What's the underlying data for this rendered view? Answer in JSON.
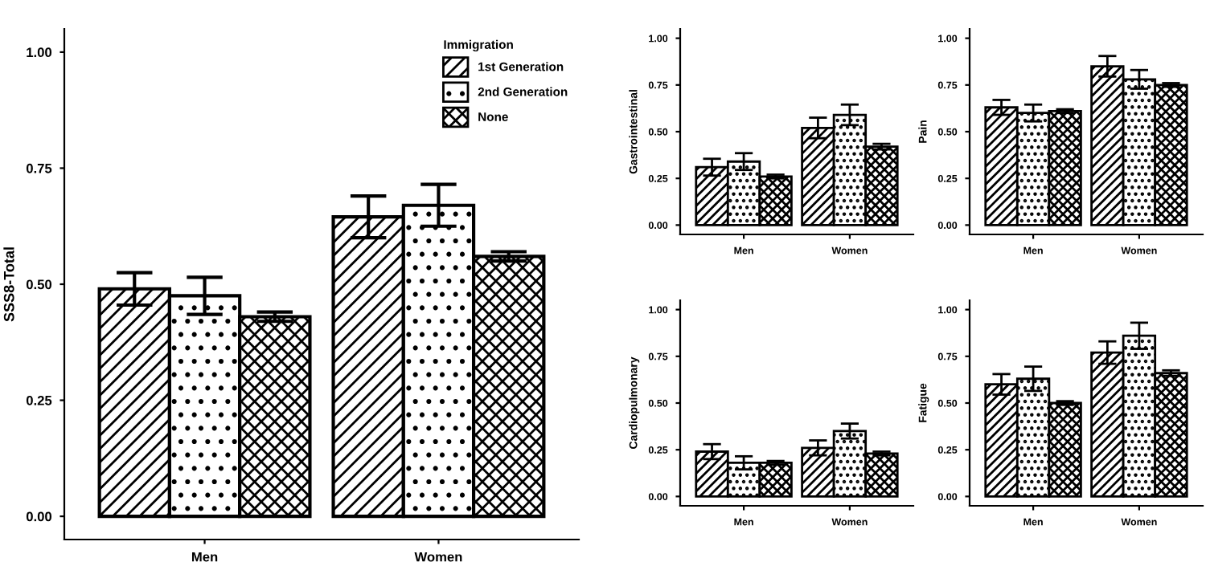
{
  "chart_data": [
    {
      "type": "bar",
      "ylabel": "SSS8-Total",
      "legend_title": "Immigration",
      "legend": "top right",
      "grid": false,
      "categories": [
        "Men",
        "Women"
      ],
      "ylim": [
        -0.05,
        1.05
      ],
      "yticks": [
        {
          "value": 0,
          "label": "0.00"
        },
        {
          "value": 0.25,
          "label": "0.25"
        },
        {
          "value": 0.5,
          "label": "0.50"
        },
        {
          "value": 0.75,
          "label": "0.75"
        },
        {
          "value": 1,
          "label": "1.00"
        }
      ],
      "series": [
        {
          "name": "1st Generation",
          "color": "#000000",
          "values": [
            0.49,
            0.645
          ],
          "errors": [
            0.035,
            0.045
          ]
        },
        {
          "name": "2nd Generation",
          "color": "#000000",
          "values": [
            0.475,
            0.67
          ],
          "errors": [
            0.04,
            0.045
          ]
        },
        {
          "name": "None",
          "color": "#000000",
          "values": [
            0.43,
            0.56
          ],
          "errors": [
            0.01,
            0.01
          ]
        }
      ]
    },
    {
      "type": "bar",
      "ylabel": "Gastrointestinal",
      "grid": false,
      "categories": [
        "Men",
        "Women"
      ],
      "ylim": [
        -0.05,
        1.05
      ],
      "yticks": [
        {
          "value": 0,
          "label": "0.00"
        },
        {
          "value": 0.25,
          "label": "0.25"
        },
        {
          "value": 0.5,
          "label": "0.50"
        },
        {
          "value": 0.75,
          "label": "0.75"
        },
        {
          "value": 1,
          "label": "1.00"
        }
      ],
      "series": [
        {
          "color": "#000000",
          "values": [
            0.31,
            0.52
          ],
          "errors": [
            0.045,
            0.055
          ]
        },
        {
          "color": "#000000",
          "values": [
            0.34,
            0.59
          ],
          "errors": [
            0.045,
            0.055
          ]
        },
        {
          "color": "#000000",
          "values": [
            0.26,
            0.42
          ],
          "errors": [
            0.01,
            0.015
          ]
        }
      ]
    },
    {
      "type": "bar",
      "ylabel": "Pain",
      "grid": false,
      "categories": [
        "Men",
        "Women"
      ],
      "ylim": [
        -0.05,
        1.05
      ],
      "yticks": [
        {
          "value": 0,
          "label": "0.00"
        },
        {
          "value": 0.25,
          "label": "0.25"
        },
        {
          "value": 0.5,
          "label": "0.50"
        },
        {
          "value": 0.75,
          "label": "0.75"
        },
        {
          "value": 1,
          "label": "1.00"
        }
      ],
      "series": [
        {
          "color": "#000000",
          "values": [
            0.63,
            0.85
          ],
          "errors": [
            0.04,
            0.055
          ]
        },
        {
          "color": "#000000",
          "values": [
            0.6,
            0.78
          ],
          "errors": [
            0.045,
            0.05
          ]
        },
        {
          "color": "#000000",
          "values": [
            0.61,
            0.75
          ],
          "errors": [
            0.01,
            0.01
          ]
        }
      ]
    },
    {
      "type": "bar",
      "ylabel": "Cardiopulmonary",
      "grid": false,
      "categories": [
        "Men",
        "Women"
      ],
      "ylim": [
        -0.05,
        1.05
      ],
      "yticks": [
        {
          "value": 0,
          "label": "0.00"
        },
        {
          "value": 0.25,
          "label": "0.25"
        },
        {
          "value": 0.5,
          "label": "0.50"
        },
        {
          "value": 0.75,
          "label": "0.75"
        },
        {
          "value": 1,
          "label": "1.00"
        }
      ],
      "series": [
        {
          "color": "#000000",
          "values": [
            0.24,
            0.26
          ],
          "errors": [
            0.04,
            0.04
          ]
        },
        {
          "color": "#000000",
          "values": [
            0.18,
            0.35
          ],
          "errors": [
            0.035,
            0.04
          ]
        },
        {
          "color": "#000000",
          "values": [
            0.18,
            0.23
          ],
          "errors": [
            0.01,
            0.01
          ]
        }
      ]
    },
    {
      "type": "bar",
      "ylabel": "Fatigue",
      "grid": false,
      "categories": [
        "Men",
        "Women"
      ],
      "ylim": [
        -0.05,
        1.05
      ],
      "yticks": [
        {
          "value": 0,
          "label": "0.00"
        },
        {
          "value": 0.25,
          "label": "0.25"
        },
        {
          "value": 0.5,
          "label": "0.50"
        },
        {
          "value": 0.75,
          "label": "0.75"
        },
        {
          "value": 1,
          "label": "1.00"
        }
      ],
      "series": [
        {
          "color": "#000000",
          "values": [
            0.6,
            0.77
          ],
          "errors": [
            0.055,
            0.06
          ]
        },
        {
          "color": "#000000",
          "values": [
            0.63,
            0.86
          ],
          "errors": [
            0.065,
            0.07
          ]
        },
        {
          "color": "#000000",
          "values": [
            0.5,
            0.66
          ],
          "errors": [
            0.01,
            0.015
          ]
        }
      ]
    }
  ]
}
